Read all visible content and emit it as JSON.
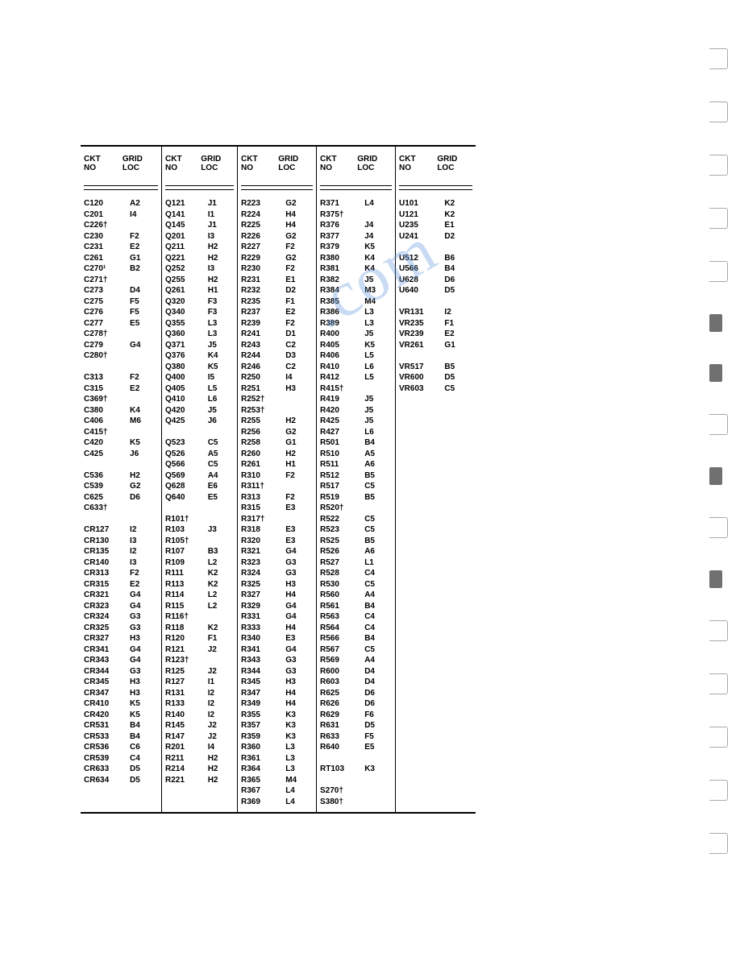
{
  "headers": {
    "ckt": "CKT",
    "no": "NO",
    "grid": "GRID",
    "loc": "LOC"
  },
  "columns": [
    [
      {
        "c": "C120",
        "l": "A2"
      },
      {
        "c": "C201",
        "l": "I4"
      },
      {
        "c": "C226†",
        "l": ""
      },
      {
        "c": "C230",
        "l": "F2"
      },
      {
        "c": "C231",
        "l": "E2"
      },
      {
        "c": "C261",
        "l": "G1"
      },
      {
        "c": "C270¹",
        "l": "B2"
      },
      {
        "c": "C271†",
        "l": ""
      },
      {
        "c": "C273",
        "l": "D4"
      },
      {
        "c": "C275",
        "l": "F5"
      },
      {
        "c": "C276",
        "l": "F5"
      },
      {
        "c": "C277",
        "l": "E5"
      },
      {
        "c": "C278†",
        "l": ""
      },
      {
        "c": "C279",
        "l": "G4"
      },
      {
        "c": "C280†",
        "l": ""
      },
      {
        "s": 1
      },
      {
        "c": "C313",
        "l": "F2"
      },
      {
        "c": "C315",
        "l": "E2"
      },
      {
        "c": "C369†",
        "l": ""
      },
      {
        "c": "C380",
        "l": "K4"
      },
      {
        "c": "C406",
        "l": "M6"
      },
      {
        "c": "C415†",
        "l": ""
      },
      {
        "c": "C420",
        "l": "K5"
      },
      {
        "c": "C425",
        "l": "J6"
      },
      {
        "s": 1
      },
      {
        "c": "C536",
        "l": "H2"
      },
      {
        "c": "C539",
        "l": "G2"
      },
      {
        "c": "C625",
        "l": "D6"
      },
      {
        "c": "C633†",
        "l": ""
      },
      {
        "s": 1
      },
      {
        "c": "CR127",
        "l": "I2"
      },
      {
        "c": "CR130",
        "l": "I3"
      },
      {
        "c": "CR135",
        "l": "I2"
      },
      {
        "c": "CR140",
        "l": "I3"
      },
      {
        "c": "CR313",
        "l": "F2"
      },
      {
        "c": "CR315",
        "l": "E2"
      },
      {
        "c": "CR321",
        "l": "G4"
      },
      {
        "c": "CR323",
        "l": "G4"
      },
      {
        "c": "CR324",
        "l": "G3"
      },
      {
        "c": "CR325",
        "l": "G3"
      },
      {
        "c": "CR327",
        "l": "H3"
      },
      {
        "c": "CR341",
        "l": "G4"
      },
      {
        "c": "CR343",
        "l": "G4"
      },
      {
        "c": "CR344",
        "l": "G3"
      },
      {
        "c": "CR345",
        "l": "H3"
      },
      {
        "c": "CR347",
        "l": "H3"
      },
      {
        "c": "CR410",
        "l": "K5"
      },
      {
        "c": "CR420",
        "l": "K5"
      },
      {
        "c": "CR531",
        "l": "B4"
      },
      {
        "c": "CR533",
        "l": "B4"
      },
      {
        "c": "CR536",
        "l": "C6"
      },
      {
        "c": "CR539",
        "l": "C4"
      },
      {
        "c": "CR633",
        "l": "D5"
      },
      {
        "c": "CR634",
        "l": "D5"
      }
    ],
    [
      {
        "c": "Q121",
        "l": "J1"
      },
      {
        "c": "Q141",
        "l": "I1"
      },
      {
        "c": "Q145",
        "l": "J1"
      },
      {
        "c": "Q201",
        "l": "I3"
      },
      {
        "c": "Q211",
        "l": "H2"
      },
      {
        "c": "Q221",
        "l": "H2"
      },
      {
        "c": "Q252",
        "l": "I3"
      },
      {
        "c": "Q255",
        "l": "H2"
      },
      {
        "c": "Q261",
        "l": "H1"
      },
      {
        "c": "Q320",
        "l": "F3"
      },
      {
        "c": "Q340",
        "l": "F3"
      },
      {
        "c": "Q355",
        "l": "L3"
      },
      {
        "c": "Q360",
        "l": "L3"
      },
      {
        "c": "Q371",
        "l": "J5"
      },
      {
        "c": "Q376",
        "l": "K4"
      },
      {
        "c": "Q380",
        "l": "K5"
      },
      {
        "c": "Q400",
        "l": "I5"
      },
      {
        "c": "Q405",
        "l": "L5"
      },
      {
        "c": "Q410",
        "l": "L6"
      },
      {
        "c": "Q420",
        "l": "J5"
      },
      {
        "c": "Q425",
        "l": "J6"
      },
      {
        "s": 1
      },
      {
        "c": "Q523",
        "l": "C5"
      },
      {
        "c": "Q526",
        "l": "A5"
      },
      {
        "c": "Q566",
        "l": "C5"
      },
      {
        "c": "Q569",
        "l": "A4"
      },
      {
        "c": "Q628",
        "l": "E6"
      },
      {
        "c": "Q640",
        "l": "E5"
      },
      {
        "s": 1
      },
      {
        "c": "R101†",
        "l": ""
      },
      {
        "c": "R103",
        "l": "J3"
      },
      {
        "c": "R105†",
        "l": ""
      },
      {
        "c": "R107",
        "l": "B3"
      },
      {
        "c": "R109",
        "l": "L2"
      },
      {
        "c": "R111",
        "l": "K2"
      },
      {
        "c": "R113",
        "l": "K2"
      },
      {
        "c": "R114",
        "l": "L2"
      },
      {
        "c": "R115",
        "l": "L2"
      },
      {
        "c": "R116†",
        "l": ""
      },
      {
        "c": "R118",
        "l": "K2"
      },
      {
        "c": "R120",
        "l": "F1"
      },
      {
        "c": "R121",
        "l": "J2"
      },
      {
        "c": "R123†",
        "l": ""
      },
      {
        "c": "R125",
        "l": "J2"
      },
      {
        "c": "R127",
        "l": "I1"
      },
      {
        "c": "R131",
        "l": "I2"
      },
      {
        "c": "R133",
        "l": "I2"
      },
      {
        "c": "R140",
        "l": "I2"
      },
      {
        "c": "R145",
        "l": "J2"
      },
      {
        "c": "R147",
        "l": "J2"
      },
      {
        "c": "R201",
        "l": "I4"
      },
      {
        "c": "R211",
        "l": "H2"
      },
      {
        "c": "R214",
        "l": "H2"
      },
      {
        "c": "R221",
        "l": "H2"
      }
    ],
    [
      {
        "c": "R223",
        "l": "G2"
      },
      {
        "c": "R224",
        "l": "H4"
      },
      {
        "c": "R225",
        "l": "H4"
      },
      {
        "c": "R226",
        "l": "G2"
      },
      {
        "c": "R227",
        "l": "F2"
      },
      {
        "c": "R229",
        "l": "G2"
      },
      {
        "c": "R230",
        "l": "F2"
      },
      {
        "c": "R231",
        "l": "E1"
      },
      {
        "c": "R232",
        "l": "D2"
      },
      {
        "c": "R235",
        "l": "F1"
      },
      {
        "c": "R237",
        "l": "E2"
      },
      {
        "c": "R239",
        "l": "F2"
      },
      {
        "c": "R241",
        "l": "D1"
      },
      {
        "c": "R243",
        "l": "C2"
      },
      {
        "c": "R244",
        "l": "D3"
      },
      {
        "c": "R246",
        "l": "C2"
      },
      {
        "c": "R250",
        "l": "I4"
      },
      {
        "c": "R251",
        "l": "H3"
      },
      {
        "c": "R252†",
        "l": ""
      },
      {
        "c": "R253†",
        "l": ""
      },
      {
        "c": "R255",
        "l": "H2"
      },
      {
        "c": "R256",
        "l": "G2"
      },
      {
        "c": "R258",
        "l": "G1"
      },
      {
        "c": "R260",
        "l": "H2"
      },
      {
        "c": "R261",
        "l": "H1"
      },
      {
        "c": "R310",
        "l": "F2"
      },
      {
        "c": "R311†",
        "l": ""
      },
      {
        "c": "R313",
        "l": "F2"
      },
      {
        "c": "R315",
        "l": "E3"
      },
      {
        "c": "R317†",
        "l": ""
      },
      {
        "c": "R318",
        "l": "E3"
      },
      {
        "c": "R320",
        "l": "E3"
      },
      {
        "c": "R321",
        "l": "G4"
      },
      {
        "c": "R323",
        "l": "G3"
      },
      {
        "c": "R324",
        "l": "G3"
      },
      {
        "c": "R325",
        "l": "H3"
      },
      {
        "c": "R327",
        "l": "H4"
      },
      {
        "c": "R329",
        "l": "G4"
      },
      {
        "c": "R331",
        "l": "G4"
      },
      {
        "c": "R333",
        "l": "H4"
      },
      {
        "c": "R340",
        "l": "E3"
      },
      {
        "c": "R341",
        "l": "G4"
      },
      {
        "c": "R343",
        "l": "G3"
      },
      {
        "c": "R344",
        "l": "G3"
      },
      {
        "c": "R345",
        "l": "H3"
      },
      {
        "c": "R347",
        "l": "H4"
      },
      {
        "c": "R349",
        "l": "H4"
      },
      {
        "c": "R355",
        "l": "K3"
      },
      {
        "c": "R357",
        "l": "K3"
      },
      {
        "c": "R359",
        "l": "K3"
      },
      {
        "c": "R360",
        "l": "L3"
      },
      {
        "c": "R361",
        "l": "L3"
      },
      {
        "c": "R364",
        "l": "L3"
      },
      {
        "c": "R365",
        "l": "M4"
      },
      {
        "c": "R367",
        "l": "L4"
      },
      {
        "c": "R369",
        "l": "L4"
      }
    ],
    [
      {
        "c": "R371",
        "l": "L4"
      },
      {
        "c": "R375†",
        "l": ""
      },
      {
        "c": "R376",
        "l": "J4"
      },
      {
        "c": "R377",
        "l": "J4"
      },
      {
        "c": "R379",
        "l": "K5"
      },
      {
        "c": "R380",
        "l": "K4"
      },
      {
        "c": "R381",
        "l": "K4"
      },
      {
        "c": "R382",
        "l": "J5"
      },
      {
        "c": "R384",
        "l": "M3"
      },
      {
        "c": "R385",
        "l": "M4"
      },
      {
        "c": "R386",
        "l": "L3"
      },
      {
        "c": "R389",
        "l": "L3"
      },
      {
        "c": "R400",
        "l": "J5"
      },
      {
        "c": "R405",
        "l": "K5"
      },
      {
        "c": "R406",
        "l": "L5"
      },
      {
        "c": "R410",
        "l": "L6"
      },
      {
        "c": "R412",
        "l": "L5"
      },
      {
        "c": "R415†",
        "l": ""
      },
      {
        "c": "R419",
        "l": "J5"
      },
      {
        "c": "R420",
        "l": "J5"
      },
      {
        "c": "R425",
        "l": "J5"
      },
      {
        "c": "R427",
        "l": "L6"
      },
      {
        "c": "R501",
        "l": "B4"
      },
      {
        "c": "R510",
        "l": "A5"
      },
      {
        "c": "R511",
        "l": "A6"
      },
      {
        "c": "R512",
        "l": "B5"
      },
      {
        "c": "R517",
        "l": "C5"
      },
      {
        "c": "R519",
        "l": "B5"
      },
      {
        "c": "R520†",
        "l": ""
      },
      {
        "c": "R522",
        "l": "C5"
      },
      {
        "c": "R523",
        "l": "C5"
      },
      {
        "c": "R525",
        "l": "B5"
      },
      {
        "c": "R526",
        "l": "A6"
      },
      {
        "c": "R527",
        "l": "L1"
      },
      {
        "c": "R528",
        "l": "C4"
      },
      {
        "c": "R530",
        "l": "C5"
      },
      {
        "c": "R560",
        "l": "A4"
      },
      {
        "c": "R561",
        "l": "B4"
      },
      {
        "c": "R563",
        "l": "C4"
      },
      {
        "c": "R564",
        "l": "C4"
      },
      {
        "c": "R566",
        "l": "B4"
      },
      {
        "c": "R567",
        "l": "C5"
      },
      {
        "c": "R569",
        "l": "A4"
      },
      {
        "c": "R600",
        "l": "D4"
      },
      {
        "c": "R603",
        "l": "D4"
      },
      {
        "c": "R625",
        "l": "D6"
      },
      {
        "c": "R626",
        "l": "D6"
      },
      {
        "c": "R629",
        "l": "F6"
      },
      {
        "c": "R631",
        "l": "D5"
      },
      {
        "c": "R633",
        "l": "F5"
      },
      {
        "c": "R640",
        "l": "E5"
      },
      {
        "s": 1
      },
      {
        "c": "RT103",
        "l": "K3"
      },
      {
        "s": 1
      },
      {
        "c": "S270†",
        "l": ""
      },
      {
        "c": "S380†",
        "l": ""
      }
    ],
    [
      {
        "c": "U101",
        "l": "K2"
      },
      {
        "c": "U121",
        "l": "K2"
      },
      {
        "c": "U235",
        "l": "E1"
      },
      {
        "c": "U241",
        "l": "D2"
      },
      {
        "s": 1
      },
      {
        "c": "U512",
        "l": "B6"
      },
      {
        "c": "U566",
        "l": "B4"
      },
      {
        "c": "U628",
        "l": "D6"
      },
      {
        "c": "U640",
        "l": "D5"
      },
      {
        "s": 1
      },
      {
        "c": "VR131",
        "l": "I2"
      },
      {
        "c": "VR235",
        "l": "F1"
      },
      {
        "c": "VR239",
        "l": "E2"
      },
      {
        "c": "VR261",
        "l": "G1"
      },
      {
        "s": 1
      },
      {
        "c": "VR517",
        "l": "B5"
      },
      {
        "c": "VR600",
        "l": "D5"
      },
      {
        "c": "VR603",
        "l": "C5"
      }
    ]
  ],
  "watermark": ".com"
}
